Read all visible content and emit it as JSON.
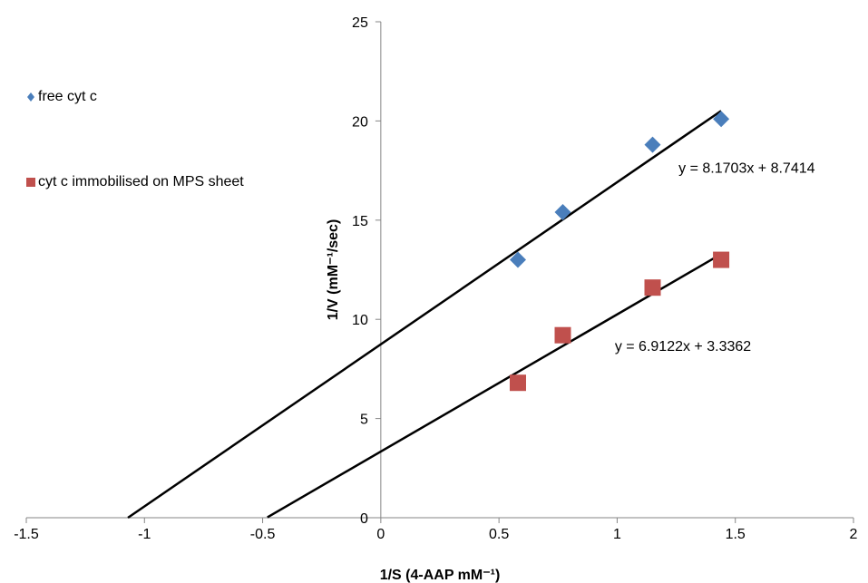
{
  "chart_data": {
    "type": "scatter",
    "xlabel": "1/S (4-AAP mM⁻¹)",
    "ylabel": "1/V (mM⁻¹/sec)",
    "xlim": [
      -1.5,
      2
    ],
    "ylim": [
      0,
      25
    ],
    "xticks": [
      "-1.5",
      "-1",
      "-0.5",
      "0",
      "0.5",
      "1",
      "1.5",
      "2"
    ],
    "yticks": [
      "0",
      "5",
      "10",
      "15",
      "20",
      "25"
    ],
    "grid": false,
    "legend_position": "left",
    "series": [
      {
        "name": "free cyt c",
        "marker": "diamond",
        "color": "#4a7ebb",
        "x": [
          0.58,
          0.77,
          1.15,
          1.44
        ],
        "y": [
          13.0,
          15.4,
          18.8,
          20.1
        ],
        "trendline": {
          "slope": 8.1703,
          "intercept": 8.7414,
          "x_range": [
            -1.07,
            1.44
          ],
          "label": "y = 8.1703x + 8.7414"
        }
      },
      {
        "name": "cyt c immobilised on MPS sheet",
        "marker": "square",
        "color": "#c0504d",
        "x": [
          0.58,
          0.77,
          1.15,
          1.44
        ],
        "y": [
          6.8,
          9.2,
          11.6,
          13.0
        ],
        "trendline": {
          "slope": 6.9122,
          "intercept": 3.3362,
          "x_range": [
            -0.48,
            1.44
          ],
          "label": "y = 6.9122x + 3.3362"
        }
      }
    ]
  }
}
